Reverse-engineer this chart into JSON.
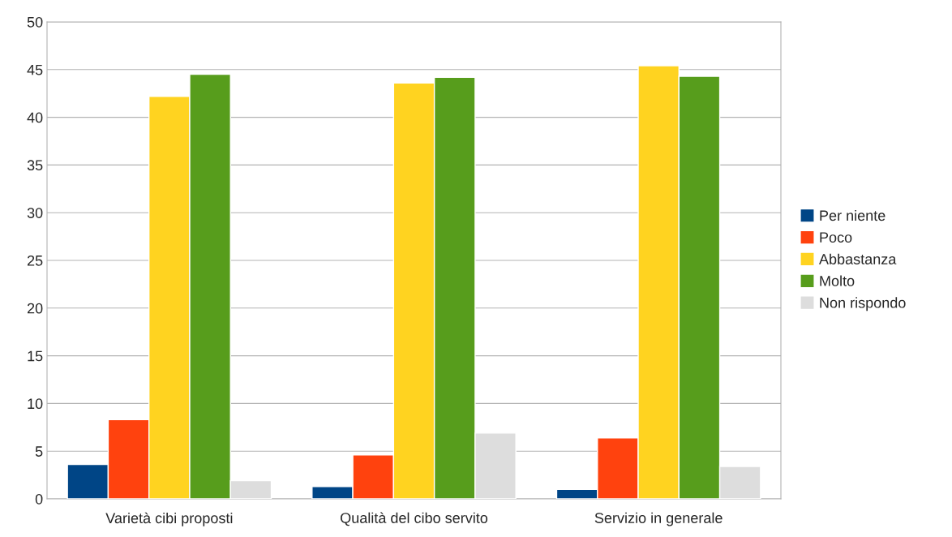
{
  "chart_data": {
    "type": "bar",
    "categories": [
      "Varietà cibi proposti",
      "Qualità del cibo servito",
      "Servizio in generale"
    ],
    "series": [
      {
        "name": "Per niente",
        "color": "#004586",
        "values": [
          3.6,
          1.3,
          1.0
        ]
      },
      {
        "name": "Poco",
        "color": "#ff420e",
        "values": [
          8.3,
          4.6,
          6.4
        ]
      },
      {
        "name": "Abbastanza",
        "color": "#ffd320",
        "values": [
          42.2,
          43.6,
          45.4
        ]
      },
      {
        "name": "Molto",
        "color": "#579d1c",
        "values": [
          44.5,
          44.2,
          44.3
        ]
      },
      {
        "name": "Non rispondo",
        "color": "#dddddd",
        "values": [
          1.9,
          6.9,
          3.4
        ]
      }
    ],
    "ylim": [
      0,
      50
    ],
    "yticks": [
      0,
      5,
      10,
      15,
      20,
      25,
      30,
      35,
      40,
      45,
      50
    ],
    "grid": "y",
    "legend": "right"
  }
}
